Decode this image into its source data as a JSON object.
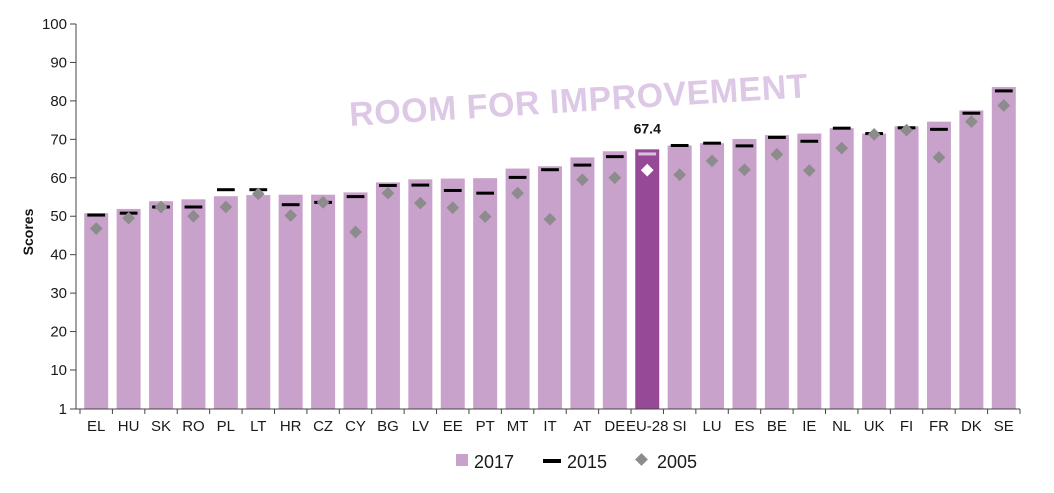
{
  "chart_data": {
    "type": "bar",
    "ylabel": "Scores",
    "ylim": [
      1,
      100
    ],
    "yticks": [
      1,
      10,
      20,
      30,
      40,
      50,
      60,
      70,
      80,
      90,
      100
    ],
    "annotation": "ROOM FOR IMPROVEMENT",
    "highlight": {
      "category": "EU-28",
      "label": "67.4"
    },
    "categories": [
      "EL",
      "HU",
      "SK",
      "RO",
      "PL",
      "LT",
      "HR",
      "CZ",
      "CY",
      "BG",
      "LV",
      "EE",
      "PT",
      "MT",
      "IT",
      "AT",
      "DE",
      "EU-28",
      "SI",
      "LU",
      "ES",
      "BE",
      "IE",
      "NL",
      "UK",
      "FI",
      "FR",
      "DK",
      "SE"
    ],
    "series": [
      {
        "name": "2017",
        "kind": "bar",
        "color": "#c9a2cb",
        "highlight_color": "#954996",
        "values": [
          50.8,
          51.9,
          53.9,
          54.4,
          55.2,
          55.5,
          55.6,
          55.6,
          56.2,
          58.8,
          59.6,
          59.8,
          59.9,
          62.4,
          63.0,
          65.3,
          66.9,
          67.4,
          68.4,
          69.0,
          70.1,
          71.1,
          71.5,
          72.9,
          71.5,
          73.4,
          74.6,
          77.5,
          83.6
        ]
      },
      {
        "name": "2015",
        "kind": "dash",
        "color": "#000000",
        "values": [
          50.3,
          50.8,
          52.4,
          52.4,
          56.9,
          56.9,
          53.0,
          53.6,
          55.1,
          58.0,
          58.1,
          56.7,
          56.0,
          60.1,
          62.1,
          63.3,
          65.5,
          66.2,
          68.4,
          69.0,
          68.3,
          70.5,
          69.5,
          72.9,
          71.5,
          73.0,
          72.6,
          76.8,
          82.6
        ]
      },
      {
        "name": "2005",
        "kind": "diamond",
        "color": "#8c8c8c",
        "highlight_color": "#ffffff",
        "values": [
          46.8,
          49.5,
          52.4,
          50.0,
          52.4,
          55.8,
          50.2,
          53.6,
          45.9,
          56.0,
          53.4,
          52.2,
          49.9,
          56.0,
          49.2,
          59.5,
          60.0,
          62.0,
          60.8,
          64.4,
          62.1,
          66.1,
          61.9,
          67.7,
          71.3,
          72.4,
          65.3,
          74.6,
          78.8
        ]
      }
    ]
  }
}
